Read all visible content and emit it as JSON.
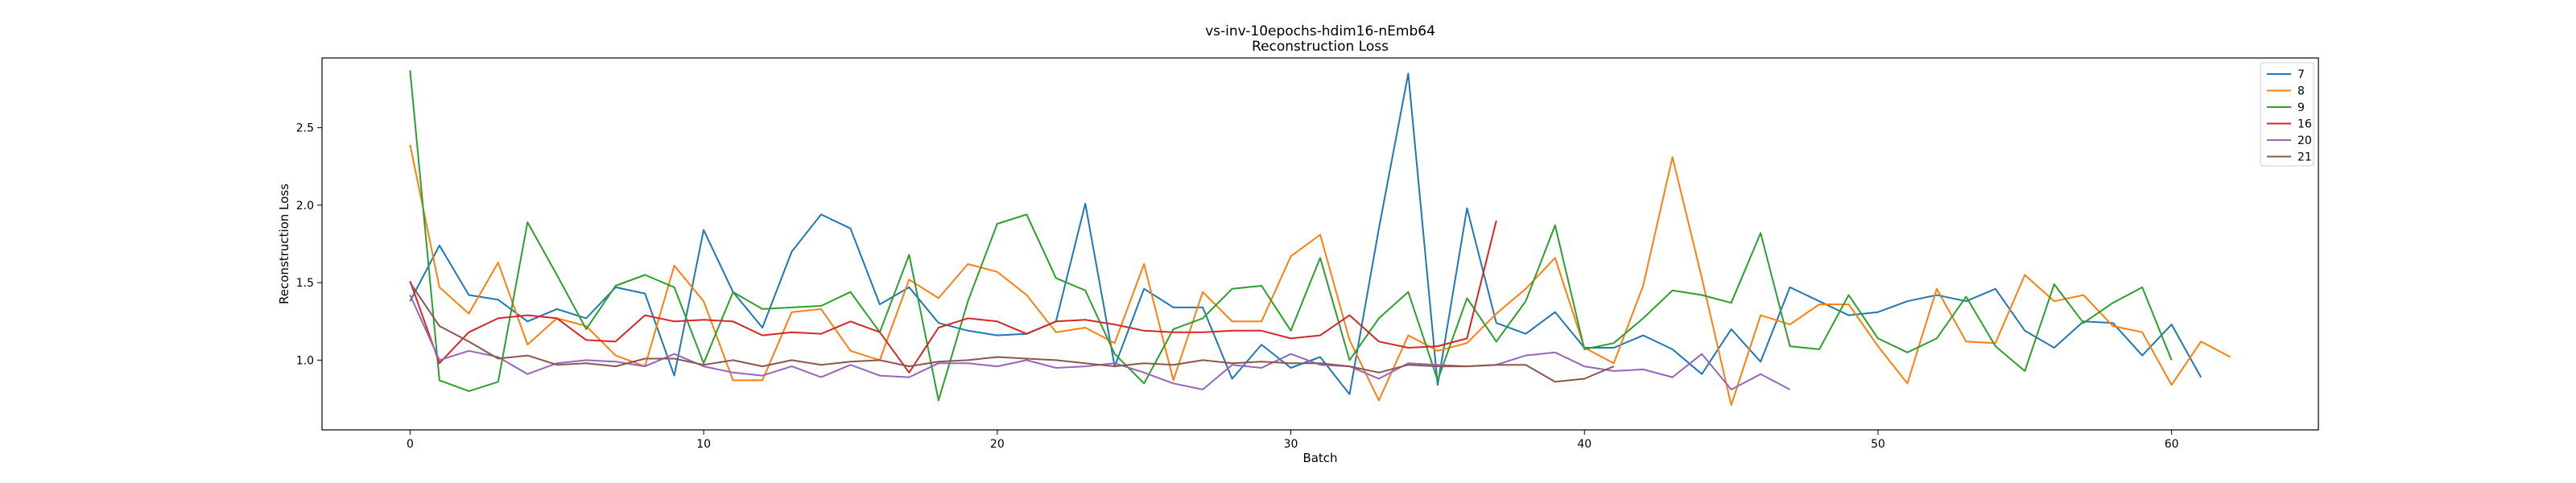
{
  "chart_data": {
    "type": "line",
    "title": "vs-inv-10epochs-hdim16-nEmb64",
    "subtitle": "Reconstruction Loss",
    "xlabel": "Batch",
    "ylabel": "Reconstruction Loss",
    "xlim": [
      -3,
      65
    ],
    "ylim": [
      0.55,
      2.95
    ],
    "xticks": [
      0,
      10,
      20,
      30,
      40,
      50,
      60
    ],
    "yticks": [
      1.0,
      1.5,
      2.0,
      2.5
    ],
    "ytick_labels": [
      "1.0",
      "1.5",
      "2.0",
      "2.5"
    ],
    "grid": false,
    "legend_position": "top-right",
    "series": [
      {
        "name": "7",
        "color": "#1f77b4",
        "values": [
          1.38,
          1.74,
          1.42,
          1.39,
          1.25,
          1.33,
          1.27,
          1.47,
          1.43,
          0.9,
          1.84,
          1.44,
          1.21,
          1.7,
          1.94,
          1.85,
          1.36,
          1.47,
          1.24,
          1.19,
          1.16,
          1.17,
          1.25,
          2.01,
          0.96,
          1.46,
          1.34,
          1.34,
          0.88,
          1.1,
          0.95,
          1.02,
          0.78,
          1.85,
          2.85,
          0.84,
          1.98,
          1.24,
          1.17,
          1.31,
          1.08,
          1.08,
          1.16,
          1.07,
          0.91,
          1.2,
          0.99,
          1.47,
          1.38,
          1.29,
          1.31,
          1.38,
          1.42,
          1.38,
          1.46,
          1.19,
          1.08,
          1.25,
          1.24,
          1.03,
          1.23,
          0.89
        ]
      },
      {
        "name": "8",
        "color": "#ff7f0e",
        "values": [
          2.39,
          1.47,
          1.3,
          1.63,
          1.1,
          1.27,
          1.22,
          1.03,
          0.96,
          1.61,
          1.38,
          0.87,
          0.87,
          1.31,
          1.33,
          1.06,
          1.0,
          1.52,
          1.4,
          1.62,
          1.57,
          1.42,
          1.18,
          1.21,
          1.11,
          1.62,
          0.87,
          1.44,
          1.25,
          1.25,
          1.67,
          1.81,
          1.13,
          0.74,
          1.16,
          1.06,
          1.11,
          1.3,
          1.46,
          1.66,
          1.08,
          0.98,
          1.48,
          2.31,
          1.53,
          0.71,
          1.29,
          1.23,
          1.36,
          1.36,
          1.09,
          0.85,
          1.46,
          1.12,
          1.11,
          1.55,
          1.38,
          1.42,
          1.22,
          1.18,
          0.84,
          1.12,
          1.02
        ]
      },
      {
        "name": "9",
        "color": "#2ca02c",
        "values": [
          2.87,
          0.87,
          0.8,
          0.86,
          1.89,
          1.55,
          1.2,
          1.48,
          1.55,
          1.47,
          0.98,
          1.44,
          1.33,
          1.34,
          1.35,
          1.44,
          1.18,
          1.68,
          0.74,
          1.38,
          1.88,
          1.94,
          1.53,
          1.45,
          1.04,
          0.85,
          1.2,
          1.27,
          1.46,
          1.48,
          1.19,
          1.66,
          1.0,
          1.27,
          1.44,
          0.87,
          1.4,
          1.12,
          1.38,
          1.87,
          1.07,
          1.11,
          1.27,
          1.45,
          1.42,
          1.37,
          1.82,
          1.09,
          1.07,
          1.42,
          1.14,
          1.05,
          1.14,
          1.41,
          1.09,
          0.93,
          1.49,
          1.24,
          1.37,
          1.47,
          1.0
        ]
      },
      {
        "name": "16",
        "color": "#d62728",
        "values": [
          1.51,
          0.98,
          1.18,
          1.27,
          1.29,
          1.27,
          1.13,
          1.12,
          1.29,
          1.25,
          1.26,
          1.25,
          1.16,
          1.18,
          1.17,
          1.25,
          1.18,
          0.92,
          1.21,
          1.27,
          1.25,
          1.17,
          1.25,
          1.26,
          1.23,
          1.19,
          1.18,
          1.18,
          1.19,
          1.19,
          1.14,
          1.16,
          1.29,
          1.12,
          1.08,
          1.09,
          1.14,
          1.9
        ]
      },
      {
        "name": "20",
        "color": "#9467bd",
        "values": [
          1.42,
          1.0,
          1.06,
          1.02,
          0.91,
          0.98,
          1.0,
          0.99,
          0.96,
          1.04,
          0.96,
          0.92,
          0.9,
          0.96,
          0.89,
          0.97,
          0.9,
          0.89,
          0.98,
          0.98,
          0.96,
          1.0,
          0.95,
          0.96,
          0.98,
          0.92,
          0.85,
          0.81,
          0.97,
          0.95,
          1.04,
          0.97,
          0.96,
          0.88,
          0.98,
          0.97,
          0.96,
          0.97,
          1.03,
          1.05,
          0.96,
          0.93,
          0.94,
          0.89,
          1.04,
          0.81,
          0.91,
          0.81
        ]
      },
      {
        "name": "21",
        "color": "#8c564b",
        "values": [
          1.5,
          1.22,
          1.12,
          1.01,
          1.03,
          0.97,
          0.98,
          0.96,
          1.01,
          1.01,
          0.97,
          1.0,
          0.96,
          1.0,
          0.97,
          0.99,
          1.0,
          0.96,
          0.99,
          1.0,
          1.02,
          1.01,
          1.0,
          0.98,
          0.96,
          0.98,
          0.97,
          1.0,
          0.98,
          0.99,
          0.98,
          0.98,
          0.96,
          0.92,
          0.97,
          0.96,
          0.96,
          0.97,
          0.97,
          0.86,
          0.88,
          0.96
        ]
      }
    ]
  }
}
